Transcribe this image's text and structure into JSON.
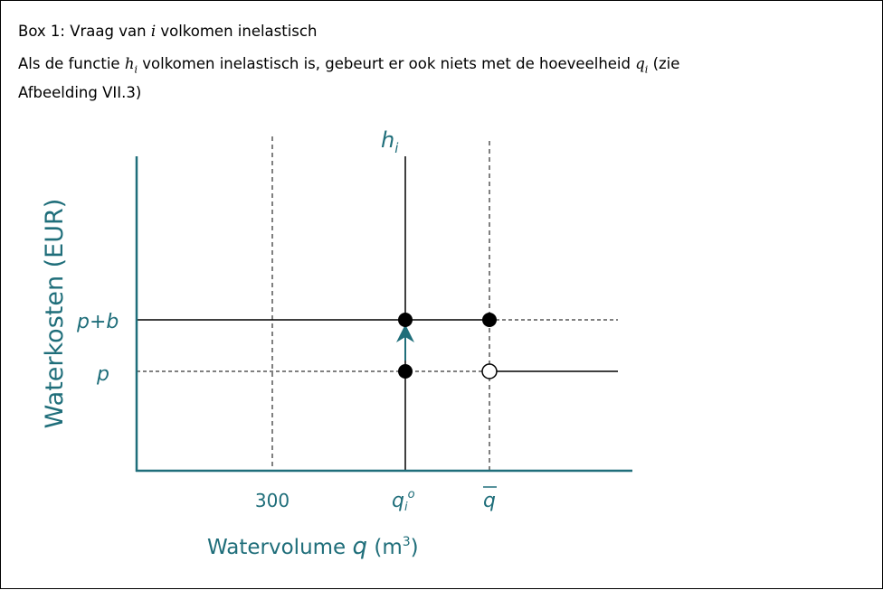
{
  "box": {
    "title": [
      "Box 1: Vraag van ",
      "i",
      " volkomen inelastisch"
    ],
    "paragraph": [
      "Als de functie ",
      "h",
      "i",
      " volkomen inelastisch is, gebeurt er ook niets met de hoeveelheid ",
      "q",
      "i",
      " (zie",
      "Afbeelding VII.3)"
    ],
    "figure": {
      "y_axis_label": "Waterkosten (EUR)",
      "x_axis_label": [
        "Watervolume ",
        "q",
        " (m",
        "3",
        ")"
      ],
      "curve_label": [
        "h",
        "i"
      ],
      "y_labels": [
        "p+b",
        "p"
      ],
      "x_labels": {
        "tick_300": "300",
        "q_i_o": [
          "q",
          "i",
          "o"
        ],
        "q_bar": "q"
      }
    }
  }
}
